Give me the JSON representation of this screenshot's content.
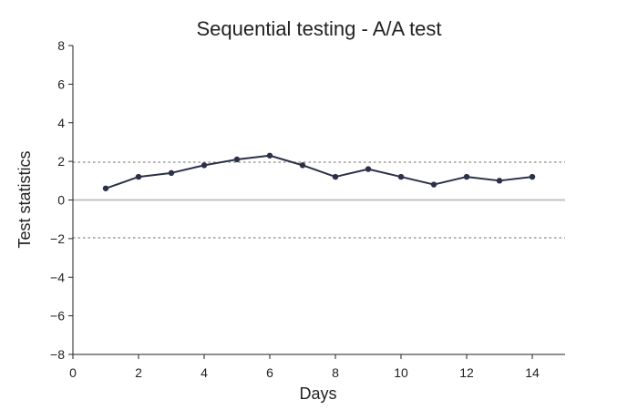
{
  "chart_data": {
    "type": "line",
    "title": "Sequential testing - A/A test",
    "xlabel": "Days",
    "ylabel": "Test statistics",
    "xlim": [
      0,
      15
    ],
    "ylim": [
      -8,
      8
    ],
    "x_ticks": [
      "0",
      "2",
      "4",
      "6",
      "8",
      "10",
      "12",
      "14"
    ],
    "y_ticks": [
      "−8",
      "−6",
      "−4",
      "−2",
      "0",
      "2",
      "4",
      "6",
      "8"
    ],
    "grid": false,
    "series": [
      {
        "x": [
          1,
          2,
          3,
          4,
          5,
          6,
          7,
          8,
          9,
          10,
          11,
          12,
          13,
          14
        ],
        "values": [
          0.6,
          1.2,
          1.4,
          1.8,
          2.1,
          2.3,
          1.8,
          1.2,
          1.6,
          1.2,
          0.8,
          1.2,
          1.0,
          1.2
        ],
        "color": "#2b3148"
      }
    ],
    "reference_lines": [
      {
        "y": 1.96,
        "style": "dotted",
        "color": "#888888"
      },
      {
        "y": -1.96,
        "style": "dotted",
        "color": "#888888"
      },
      {
        "y": 0,
        "style": "solid",
        "color": "#bbbbbb"
      }
    ]
  }
}
